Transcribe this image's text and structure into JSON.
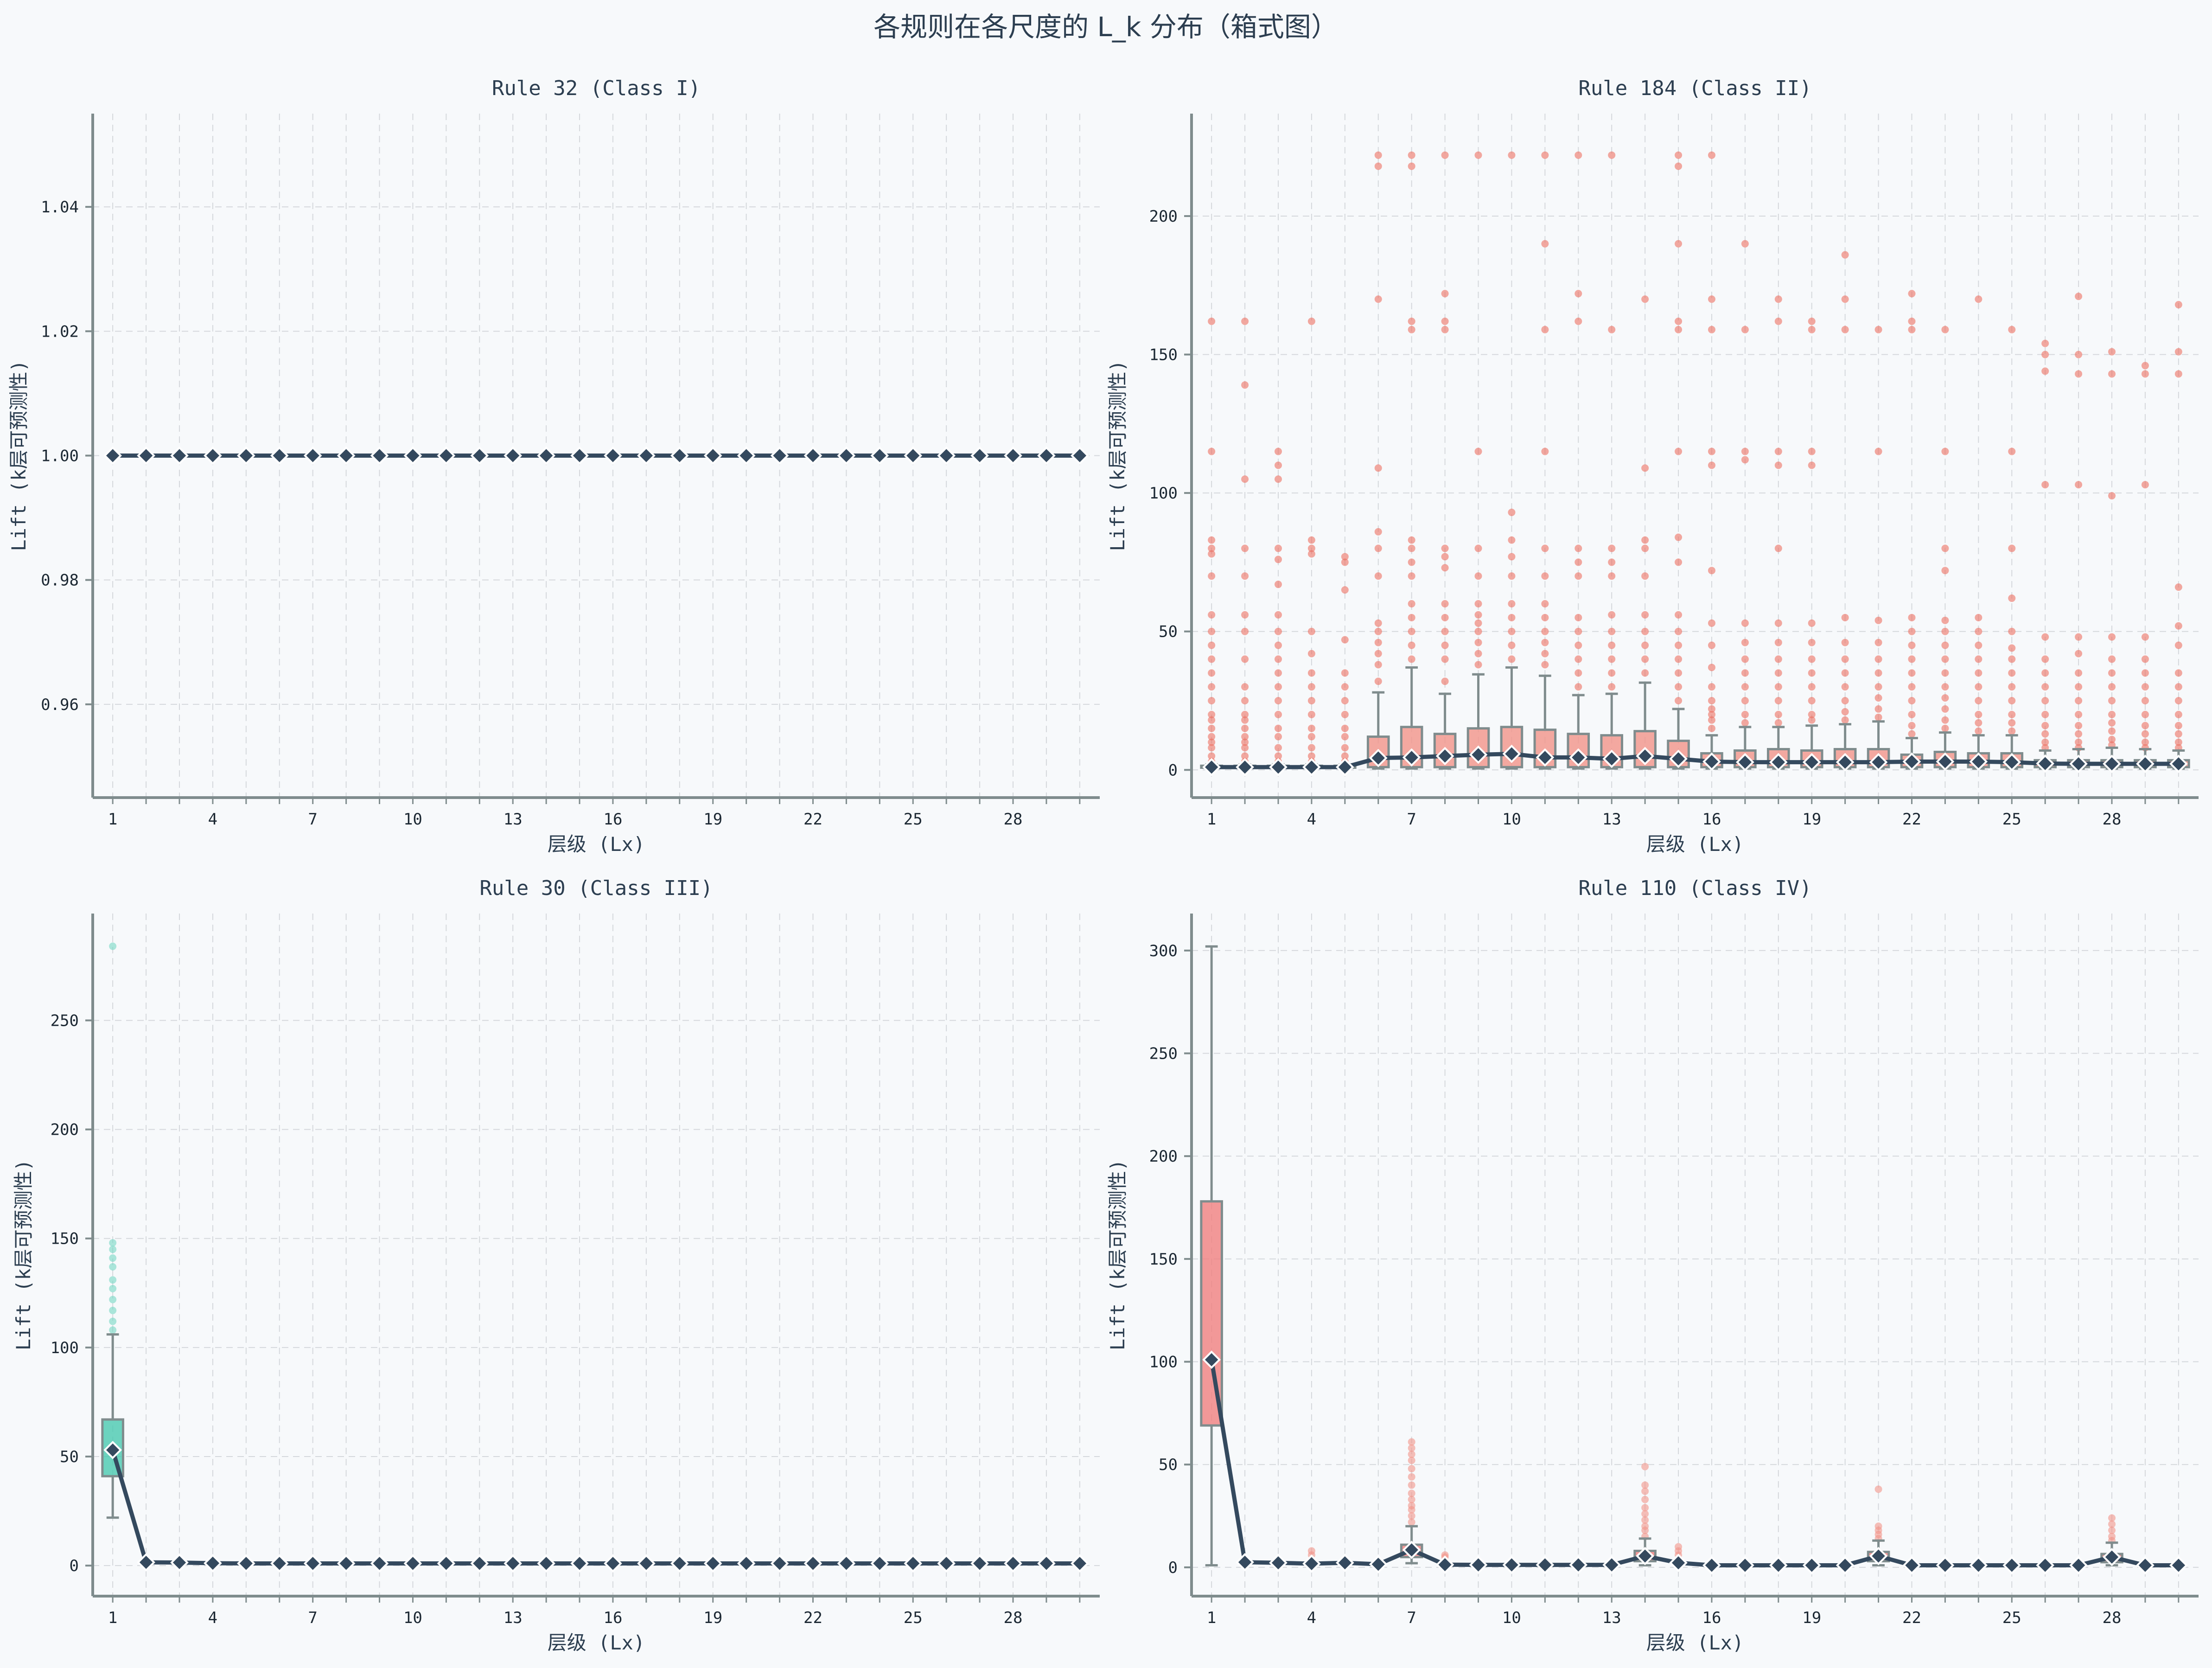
{
  "suptitle": "各规则在各尺度的 L_k 分布（箱式图）",
  "colors": {
    "background": "#f7f9fb",
    "axis": "#7f8c8d",
    "grid": "#d5d8dc",
    "median_line": "#34495e",
    "class_ii_box": "#f1948a",
    "class_ii_outlier": "#ec7063",
    "class_iii_box": "#48c9b0",
    "class_iv_box": "#f08080"
  },
  "chart_data": [
    {
      "type": "box",
      "title": "Rule 32 (Class I)",
      "xlabel": "层级 (Lx)",
      "ylabel": "Lift (k层可预测性)",
      "x_ticks": [
        1,
        4,
        7,
        10,
        13,
        16,
        19,
        22,
        25,
        28
      ],
      "layers": 30,
      "ylim": [
        0.945,
        1.055
      ],
      "y_ticks": [
        0.96,
        0.98,
        1.0,
        1.02,
        1.04
      ],
      "y_tick_labels": [
        "0.96",
        "0.98",
        "1.00",
        "1.02",
        "1.04"
      ],
      "box_color": "#aab7b8",
      "outlier_color": "#aab7b8",
      "grid": true,
      "medians": [
        1,
        1,
        1,
        1,
        1,
        1,
        1,
        1,
        1,
        1,
        1,
        1,
        1,
        1,
        1,
        1,
        1,
        1,
        1,
        1,
        1,
        1,
        1,
        1,
        1,
        1,
        1,
        1,
        1,
        1
      ],
      "boxes": [],
      "outliers": []
    },
    {
      "type": "box",
      "title": "Rule 184 (Class II)",
      "xlabel": "层级 (Lx)",
      "ylabel": "Lift (k层可预测性)",
      "x_ticks": [
        1,
        4,
        7,
        10,
        13,
        16,
        19,
        22,
        25,
        28
      ],
      "layers": 30,
      "ylim": [
        -10,
        237
      ],
      "y_ticks": [
        0,
        50,
        100,
        150,
        200
      ],
      "y_tick_labels": [
        "0",
        "50",
        "100",
        "150",
        "200"
      ],
      "box_color": "#f1948a",
      "outlier_color": "#ec7063",
      "grid": true,
      "medians": [
        1,
        1,
        1,
        1,
        1,
        4.3,
        4.5,
        5,
        5.5,
        5.8,
        4.5,
        4.5,
        4,
        5,
        4,
        3,
        2.8,
        2.8,
        2.8,
        2.8,
        2.8,
        3,
        3,
        3,
        2.8,
        2.3,
        2.2,
        2.2,
        2.2,
        2.2
      ],
      "boxes": [
        {
          "layer": 1,
          "q1": 0.8,
          "q3": 1.5,
          "wlo": 0.5,
          "whi": 2
        },
        {
          "layer": 2,
          "q1": 0.8,
          "q3": 1.5,
          "wlo": 0.5,
          "whi": 2
        },
        {
          "layer": 3,
          "q1": 0.8,
          "q3": 1.5,
          "wlo": 0.5,
          "whi": 2
        },
        {
          "layer": 4,
          "q1": 0.8,
          "q3": 1.5,
          "wlo": 0.5,
          "whi": 2
        },
        {
          "layer": 5,
          "q1": 0.8,
          "q3": 1.5,
          "wlo": 0.5,
          "whi": 2
        },
        {
          "layer": 6,
          "q1": 1,
          "q3": 12,
          "wlo": 0.5,
          "whi": 28
        },
        {
          "layer": 7,
          "q1": 1,
          "q3": 15.5,
          "wlo": 0.5,
          "whi": 37
        },
        {
          "layer": 8,
          "q1": 1,
          "q3": 13,
          "wlo": 0.5,
          "whi": 27.5
        },
        {
          "layer": 9,
          "q1": 1,
          "q3": 15,
          "wlo": 0.5,
          "whi": 34.5
        },
        {
          "layer": 10,
          "q1": 1,
          "q3": 15.5,
          "wlo": 0.5,
          "whi": 37
        },
        {
          "layer": 11,
          "q1": 1,
          "q3": 14.5,
          "wlo": 0.5,
          "whi": 34
        },
        {
          "layer": 12,
          "q1": 1,
          "q3": 13,
          "wlo": 0.5,
          "whi": 27
        },
        {
          "layer": 13,
          "q1": 1,
          "q3": 12.5,
          "wlo": 0.5,
          "whi": 27.5
        },
        {
          "layer": 14,
          "q1": 1,
          "q3": 14,
          "wlo": 0.5,
          "whi": 31.5
        },
        {
          "layer": 15,
          "q1": 1,
          "q3": 10.5,
          "wlo": 0.5,
          "whi": 22
        },
        {
          "layer": 16,
          "q1": 1,
          "q3": 6,
          "wlo": 0.5,
          "whi": 12.5
        },
        {
          "layer": 17,
          "q1": 1,
          "q3": 7,
          "wlo": 0.5,
          "whi": 15.5
        },
        {
          "layer": 18,
          "q1": 1,
          "q3": 7.5,
          "wlo": 0.5,
          "whi": 15.5
        },
        {
          "layer": 19,
          "q1": 1,
          "q3": 7,
          "wlo": 0.5,
          "whi": 16
        },
        {
          "layer": 20,
          "q1": 1,
          "q3": 7.5,
          "wlo": 0.5,
          "whi": 16.5
        },
        {
          "layer": 21,
          "q1": 1,
          "q3": 7.5,
          "wlo": 0.5,
          "whi": 17.5
        },
        {
          "layer": 22,
          "q1": 1,
          "q3": 5.5,
          "wlo": 0.5,
          "whi": 11.5
        },
        {
          "layer": 23,
          "q1": 1,
          "q3": 6.5,
          "wlo": 0.5,
          "whi": 13.5
        },
        {
          "layer": 24,
          "q1": 1,
          "q3": 6,
          "wlo": 0.5,
          "whi": 12.5
        },
        {
          "layer": 25,
          "q1": 1,
          "q3": 6,
          "wlo": 0.5,
          "whi": 12.5
        },
        {
          "layer": 26,
          "q1": 1,
          "q3": 3.5,
          "wlo": 0.5,
          "whi": 7
        },
        {
          "layer": 27,
          "q1": 1,
          "q3": 3.5,
          "wlo": 0.5,
          "whi": 7.5
        },
        {
          "layer": 28,
          "q1": 1,
          "q3": 3.5,
          "wlo": 0.5,
          "whi": 8
        },
        {
          "layer": 29,
          "q1": 1,
          "q3": 3.5,
          "wlo": 0.5,
          "whi": 7.5
        },
        {
          "layer": 30,
          "q1": 1,
          "q3": 3.5,
          "wlo": 0.5,
          "whi": 7
        }
      ],
      "outliers": [
        {
          "layer": 1,
          "values": [
            3,
            5,
            8,
            10,
            12,
            15,
            18,
            20,
            25,
            30,
            35,
            40,
            45,
            50,
            56,
            70,
            78,
            80,
            83,
            115,
            162
          ]
        },
        {
          "layer": 2,
          "values": [
            3,
            5,
            8,
            10,
            12,
            15,
            18,
            20,
            25,
            30,
            40,
            50,
            56,
            70,
            80,
            105,
            139,
            162
          ]
        },
        {
          "layer": 3,
          "values": [
            3,
            5,
            8,
            12,
            15,
            20,
            25,
            30,
            35,
            40,
            45,
            50,
            56,
            67,
            76,
            80,
            105,
            110,
            115
          ]
        },
        {
          "layer": 4,
          "values": [
            3,
            5,
            8,
            12,
            15,
            20,
            25,
            30,
            35,
            42,
            50,
            78,
            80,
            83,
            162
          ]
        },
        {
          "layer": 5,
          "values": [
            3,
            5,
            8,
            12,
            15,
            20,
            25,
            30,
            35,
            47,
            65,
            75,
            77
          ]
        },
        {
          "layer": 6,
          "values": [
            32,
            38,
            42,
            46,
            50,
            53,
            70,
            80,
            86,
            109,
            170,
            218,
            222
          ]
        },
        {
          "layer": 7,
          "values": [
            40,
            45,
            50,
            55,
            60,
            70,
            75,
            80,
            83,
            159,
            162,
            218,
            222
          ]
        },
        {
          "layer": 8,
          "values": [
            32,
            40,
            45,
            50,
            55,
            60,
            73,
            77,
            80,
            159,
            162,
            172,
            222
          ]
        },
        {
          "layer": 9,
          "values": [
            38,
            42,
            46,
            50,
            53,
            56,
            60,
            70,
            80,
            115,
            222
          ]
        },
        {
          "layer": 10,
          "values": [
            40,
            45,
            50,
            55,
            60,
            70,
            77,
            83,
            93,
            222
          ]
        },
        {
          "layer": 11,
          "values": [
            38,
            42,
            46,
            50,
            55,
            60,
            70,
            80,
            115,
            159,
            190,
            222
          ]
        },
        {
          "layer": 12,
          "values": [
            30,
            35,
            40,
            45,
            50,
            55,
            70,
            75,
            80,
            162,
            172,
            222
          ]
        },
        {
          "layer": 13,
          "values": [
            30,
            35,
            40,
            45,
            50,
            56,
            70,
            75,
            80,
            159,
            222
          ]
        },
        {
          "layer": 14,
          "values": [
            35,
            40,
            45,
            50,
            56,
            70,
            80,
            83,
            109,
            170
          ]
        },
        {
          "layer": 15,
          "values": [
            25,
            30,
            35,
            40,
            45,
            50,
            56,
            75,
            84,
            115,
            159,
            162,
            190,
            218,
            222
          ]
        },
        {
          "layer": 16,
          "values": [
            15,
            18,
            20,
            22,
            25,
            30,
            37,
            45,
            53,
            72,
            110,
            115,
            159,
            170,
            222
          ]
        },
        {
          "layer": 17,
          "values": [
            17,
            20,
            25,
            30,
            35,
            40,
            46,
            53,
            112,
            115,
            159,
            190
          ]
        },
        {
          "layer": 18,
          "values": [
            17,
            20,
            25,
            30,
            35,
            40,
            46,
            53,
            80,
            110,
            115,
            162,
            170
          ]
        },
        {
          "layer": 19,
          "values": [
            18,
            20,
            25,
            30,
            35,
            40,
            46,
            53,
            110,
            115,
            159,
            162
          ]
        },
        {
          "layer": 20,
          "values": [
            18,
            21,
            25,
            30,
            35,
            40,
            46,
            55,
            159,
            170,
            186
          ]
        },
        {
          "layer": 21,
          "values": [
            19,
            22,
            26,
            30,
            35,
            40,
            46,
            54,
            115,
            159
          ]
        },
        {
          "layer": 22,
          "values": [
            13,
            16,
            20,
            25,
            30,
            35,
            40,
            45,
            50,
            55,
            159,
            162,
            172
          ]
        },
        {
          "layer": 23,
          "values": [
            15,
            18,
            22,
            26,
            30,
            35,
            40,
            45,
            50,
            54,
            72,
            80,
            115,
            159
          ]
        },
        {
          "layer": 24,
          "values": [
            14,
            17,
            20,
            25,
            30,
            35,
            40,
            45,
            50,
            55,
            170
          ]
        },
        {
          "layer": 25,
          "values": [
            14,
            17,
            20,
            25,
            30,
            35,
            40,
            44,
            50,
            62,
            80,
            115,
            159
          ]
        },
        {
          "layer": 26,
          "values": [
            8,
            10,
            13,
            16,
            20,
            25,
            30,
            35,
            40,
            48,
            103,
            144,
            150,
            154
          ]
        },
        {
          "layer": 27,
          "values": [
            8,
            10,
            13,
            16,
            20,
            25,
            30,
            35,
            42,
            48,
            103,
            143,
            150,
            171
          ]
        },
        {
          "layer": 28,
          "values": [
            9,
            11,
            14,
            17,
            20,
            25,
            30,
            35,
            40,
            48,
            99,
            143,
            151
          ]
        },
        {
          "layer": 29,
          "values": [
            8,
            10,
            13,
            16,
            20,
            25,
            30,
            35,
            40,
            48,
            103,
            143,
            146
          ]
        },
        {
          "layer": 30,
          "values": [
            8,
            10,
            13,
            16,
            20,
            25,
            30,
            35,
            45,
            52,
            66,
            143,
            151,
            168
          ]
        }
      ]
    },
    {
      "type": "box",
      "title": "Rule 30 (Class III)",
      "xlabel": "层级 (Lx)",
      "ylabel": "Lift (k层可预测性)",
      "x_ticks": [
        1,
        4,
        7,
        10,
        13,
        16,
        19,
        22,
        25,
        28
      ],
      "layers": 30,
      "ylim": [
        -14,
        299
      ],
      "y_ticks": [
        0,
        50,
        100,
        150,
        200,
        250
      ],
      "y_tick_labels": [
        "0",
        "50",
        "100",
        "150",
        "200",
        "250"
      ],
      "box_color": "#48c9b0",
      "outlier_color": "#76d7c4",
      "grid": true,
      "medians": [
        53,
        1.5,
        1.4,
        1.1,
        1,
        1,
        1,
        1,
        1,
        1,
        1,
        1,
        1,
        1,
        1,
        1,
        1,
        1,
        1,
        1,
        1,
        1,
        1,
        1,
        1,
        1,
        1,
        1,
        1,
        1
      ],
      "boxes": [
        {
          "layer": 1,
          "q1": 41,
          "q3": 67,
          "wlo": 22,
          "whi": 106
        }
      ],
      "outliers": [
        {
          "layer": 1,
          "values": [
            108,
            112,
            117,
            122,
            127,
            131,
            137,
            141,
            145,
            148,
            284
          ]
        }
      ]
    },
    {
      "type": "box",
      "title": "Rule 110 (Class IV)",
      "xlabel": "层级 (Lx)",
      "ylabel": "Lift (k层可预测性)",
      "x_ticks": [
        1,
        4,
        7,
        10,
        13,
        16,
        19,
        22,
        25,
        28
      ],
      "layers": 30,
      "ylim": [
        -14,
        318
      ],
      "y_ticks": [
        0,
        50,
        100,
        150,
        200,
        250,
        300
      ],
      "y_tick_labels": [
        "0",
        "50",
        "100",
        "150",
        "200",
        "250",
        "300"
      ],
      "box_color": "#f08080",
      "outlier_color": "#f1948a",
      "grid": true,
      "medians": [
        101,
        2.5,
        2.2,
        1.8,
        2.2,
        1.5,
        8.5,
        1.3,
        1.2,
        1.2,
        1.2,
        1.2,
        1.2,
        5.5,
        2.2,
        1,
        1,
        1,
        1,
        1,
        5.5,
        1,
        1,
        1,
        1,
        1,
        1,
        5,
        1,
        1
      ],
      "boxes": [
        {
          "layer": 1,
          "q1": 69,
          "q3": 178,
          "wlo": 1,
          "whi": 302
        },
        {
          "layer": 7,
          "q1": 5,
          "q3": 11,
          "wlo": 2,
          "whi": 20
        },
        {
          "layer": 14,
          "q1": 3,
          "q3": 8,
          "wlo": 1,
          "whi": 14
        },
        {
          "layer": 21,
          "q1": 3,
          "q3": 7.5,
          "wlo": 1,
          "whi": 13
        },
        {
          "layer": 28,
          "q1": 2.5,
          "q3": 6.5,
          "wlo": 1,
          "whi": 12
        }
      ],
      "outliers": [
        {
          "layer": 4,
          "values": [
            6,
            8
          ]
        },
        {
          "layer": 7,
          "values": [
            22,
            25,
            28,
            30,
            33,
            36,
            40,
            44,
            48,
            52,
            55,
            58,
            61
          ]
        },
        {
          "layer": 8,
          "values": [
            5,
            6
          ]
        },
        {
          "layer": 14,
          "values": [
            15,
            18,
            20,
            23,
            26,
            29,
            33,
            37,
            40,
            49
          ]
        },
        {
          "layer": 15,
          "values": [
            6,
            8,
            10
          ]
        },
        {
          "layer": 21,
          "values": [
            14,
            16,
            18,
            20,
            38
          ]
        },
        {
          "layer": 28,
          "values": [
            13,
            15,
            18,
            21,
            24
          ]
        }
      ]
    }
  ]
}
